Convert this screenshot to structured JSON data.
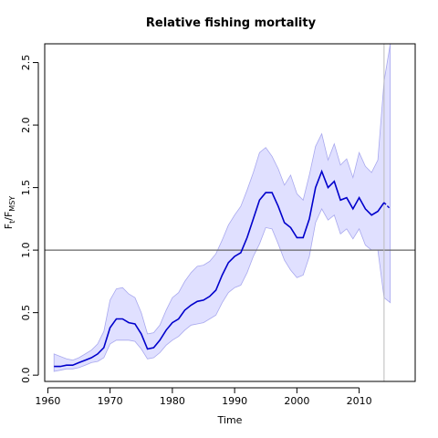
{
  "chart_data": {
    "type": "line",
    "title": "Relative fishing mortality",
    "xlabel": "Time",
    "ylabel": {
      "base": "F",
      "sub": "t",
      "mid": "/F",
      "sub2": "MSY"
    },
    "xlim": [
      1959.5,
      2019
    ],
    "ylim": [
      -0.05,
      2.65
    ],
    "xticks": [
      1960,
      1970,
      1980,
      1990,
      2000,
      2010
    ],
    "yticks": [
      0.0,
      0.5,
      1.0,
      1.5,
      2.0,
      2.5
    ],
    "ytick_labels": [
      "0.0",
      "0.5",
      "1.0",
      "1.5",
      "2.0",
      "2.5"
    ],
    "reference_line": 1.0,
    "vertical_line": 2014,
    "colors": {
      "line": "#0000cc",
      "band_fill": "#e0e0ff",
      "band_edge": "#a8a8ee",
      "reference": "#666666",
      "vertical": "#bbbbbb"
    },
    "x": [
      1961,
      1962,
      1963,
      1964,
      1965,
      1966,
      1967,
      1968,
      1969,
      1970,
      1971,
      1972,
      1973,
      1974,
      1975,
      1976,
      1977,
      1978,
      1979,
      1980,
      1981,
      1982,
      1983,
      1984,
      1985,
      1986,
      1987,
      1988,
      1989,
      1990,
      1991,
      1992,
      1993,
      1994,
      1995,
      1996,
      1997,
      1998,
      1999,
      2000,
      2001,
      2002,
      2003,
      2004,
      2005,
      2006,
      2007,
      2008,
      2009,
      2010,
      2011,
      2012,
      2013,
      2014,
      2015
    ],
    "series": [
      {
        "values": [
          0.07,
          0.07,
          0.08,
          0.08,
          0.1,
          0.12,
          0.14,
          0.17,
          0.22,
          0.38,
          0.45,
          0.45,
          0.42,
          0.41,
          0.33,
          0.21,
          0.22,
          0.28,
          0.36,
          0.42,
          0.45,
          0.52,
          0.56,
          0.59,
          0.6,
          0.63,
          0.68,
          0.8,
          0.9,
          0.95,
          0.98,
          1.1,
          1.25,
          1.4,
          1.46,
          1.46,
          1.35,
          1.22,
          1.18,
          1.1,
          1.1,
          1.25,
          1.5,
          1.63,
          1.5,
          1.55,
          1.4,
          1.42,
          1.33,
          1.42,
          1.33,
          1.28,
          1.31,
          1.38,
          1.33
        ]
      }
    ],
    "band_upper": [
      0.17,
      0.15,
      0.13,
      0.12,
      0.14,
      0.17,
      0.2,
      0.25,
      0.35,
      0.6,
      0.69,
      0.7,
      0.65,
      0.62,
      0.5,
      0.33,
      0.34,
      0.4,
      0.52,
      0.62,
      0.66,
      0.75,
      0.82,
      0.87,
      0.88,
      0.91,
      0.97,
      1.08,
      1.2,
      1.28,
      1.35,
      1.48,
      1.62,
      1.78,
      1.82,
      1.75,
      1.65,
      1.52,
      1.6,
      1.45,
      1.4,
      1.6,
      1.83,
      1.93,
      1.72,
      1.85,
      1.68,
      1.73,
      1.58,
      1.78,
      1.67,
      1.62,
      1.72,
      2.35,
      2.65
    ],
    "band_lower": [
      0.03,
      0.04,
      0.05,
      0.05,
      0.06,
      0.08,
      0.1,
      0.11,
      0.14,
      0.25,
      0.28,
      0.28,
      0.28,
      0.27,
      0.21,
      0.13,
      0.14,
      0.18,
      0.24,
      0.28,
      0.31,
      0.36,
      0.4,
      0.41,
      0.42,
      0.45,
      0.48,
      0.58,
      0.66,
      0.7,
      0.72,
      0.82,
      0.95,
      1.05,
      1.18,
      1.17,
      1.05,
      0.92,
      0.84,
      0.78,
      0.8,
      0.95,
      1.22,
      1.33,
      1.24,
      1.28,
      1.13,
      1.17,
      1.09,
      1.17,
      1.04,
      1.0,
      1.0,
      0.62,
      0.58
    ],
    "tail_dashed_from": 2014
  }
}
